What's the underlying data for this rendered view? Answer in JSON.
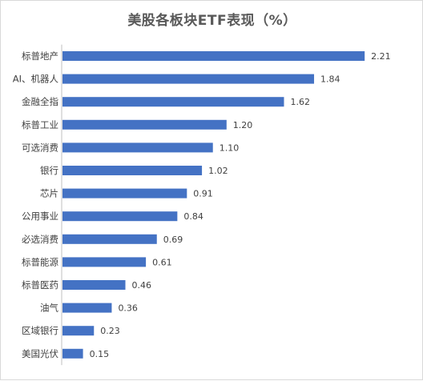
{
  "chart_data": {
    "type": "bar",
    "orientation": "horizontal",
    "title": "美股各板块ETF表现（%）",
    "xlabel": "",
    "ylabel": "",
    "categories": [
      "标普地产",
      "AI、机器人",
      "金融全指",
      "标普工业",
      "可选消费",
      "银行",
      "芯片",
      "公用事业",
      "必选消费",
      "标普能源",
      "标普医药",
      "油气",
      "区域银行",
      "美国光伏"
    ],
    "values": [
      2.21,
      1.84,
      1.62,
      1.2,
      1.1,
      1.02,
      0.91,
      0.84,
      0.69,
      0.61,
      0.46,
      0.36,
      0.23,
      0.15
    ],
    "value_labels": [
      "2.21",
      "1.84",
      "1.62",
      "1.20",
      "1.10",
      "1.02",
      "0.91",
      "0.84",
      "0.69",
      "0.61",
      "0.46",
      "0.36",
      "0.23",
      "0.15"
    ],
    "xlim": [
      0,
      2.25
    ],
    "grid": false,
    "legend": "none",
    "bar_color": "#4472c4"
  }
}
